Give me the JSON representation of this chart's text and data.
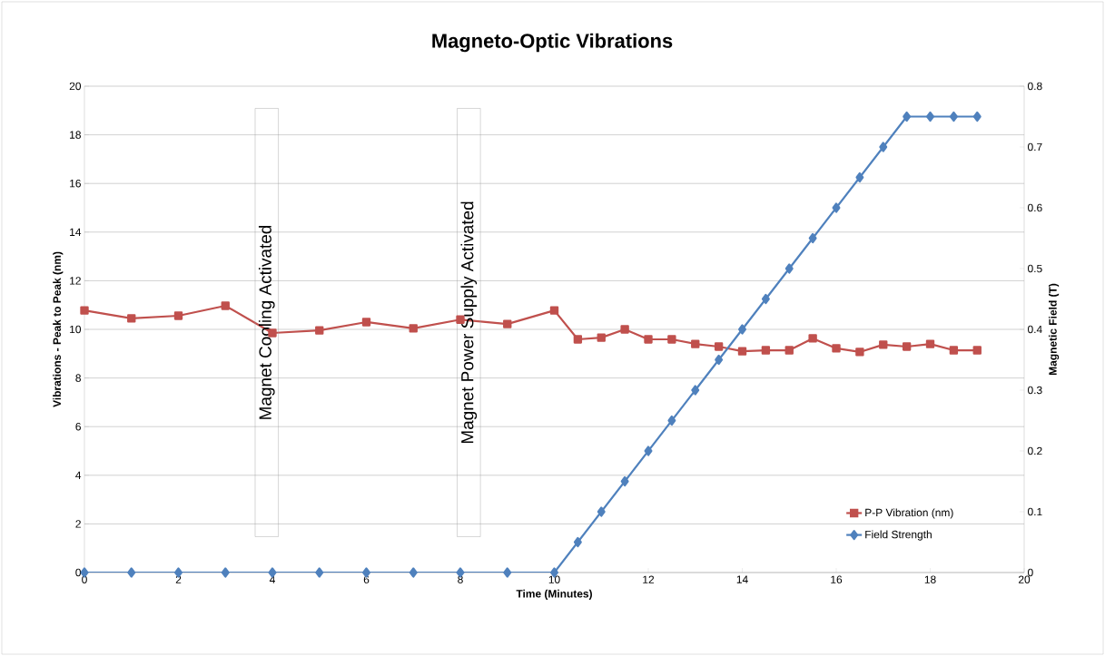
{
  "chart_data": {
    "type": "line",
    "title": "Magneto-Optic Vibrations",
    "xlabel": "Time (Minutes)",
    "ylabel": "Vibrations - Peak to Peak (nm)",
    "y2label": "Magnetic Field (T)",
    "x": [
      0,
      1,
      2,
      3,
      4,
      5,
      6,
      7,
      8,
      9,
      10,
      10.5,
      11,
      11.5,
      12,
      12.5,
      13,
      13.5,
      14,
      14.5,
      15,
      15.5,
      16,
      16.5,
      17,
      17.5,
      18,
      18.5,
      19
    ],
    "series": [
      {
        "name": "P-P Vibration (nm)",
        "color": "#c0504d",
        "marker": "square",
        "values": [
          10.78,
          10.45,
          10.56,
          10.97,
          9.85,
          9.96,
          10.3,
          10.04,
          10.4,
          10.22,
          10.78,
          9.59,
          9.66,
          10.0,
          9.59,
          9.59,
          9.4,
          9.29,
          9.1,
          9.14,
          9.14,
          9.63,
          9.22,
          9.07,
          9.37,
          9.29,
          9.4,
          9.14,
          9.14
        ]
      },
      {
        "name": "Field Strength",
        "color": "#4f81bd",
        "marker": "diamond",
        "axis": "y2",
        "values": [
          0,
          0,
          0,
          0,
          0,
          0,
          0,
          0,
          0,
          0,
          0,
          0.05,
          0.1,
          0.15,
          0.2,
          0.25,
          0.3,
          0.35,
          0.4,
          0.45,
          0.5,
          0.55,
          0.6,
          0.65,
          0.7,
          0.75,
          0.75,
          0.75,
          0.75
        ]
      }
    ],
    "xlim": [
      0,
      20
    ],
    "xticks": [
      0,
      2,
      4,
      6,
      8,
      10,
      12,
      14,
      16,
      18,
      20
    ],
    "ylim": [
      0,
      20
    ],
    "yticks": [
      0,
      2,
      4,
      6,
      8,
      10,
      12,
      14,
      16,
      18,
      20
    ],
    "y2lim": [
      0,
      0.8
    ],
    "y2ticks": [
      0,
      0.1,
      0.2,
      0.3,
      0.4,
      0.5,
      0.6,
      0.7,
      0.8
    ],
    "grid": "y",
    "legend": "bottom right",
    "line_style": "solid",
    "annotations": [
      "Magnet Cooling Activated",
      "Magnet Power Supply Activated"
    ]
  }
}
